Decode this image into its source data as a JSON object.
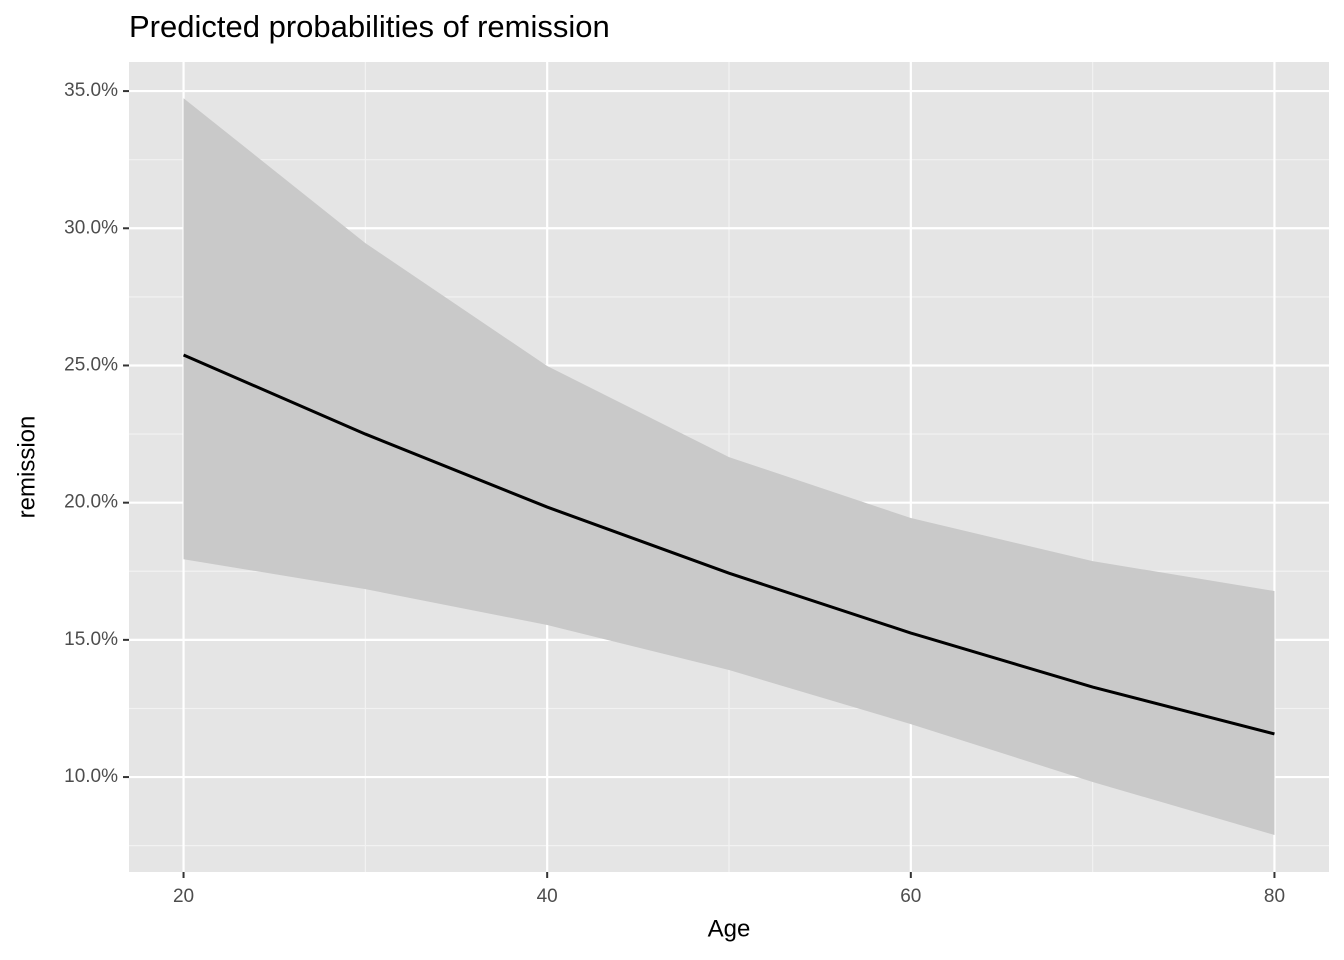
{
  "chart_data": {
    "type": "line",
    "title": "Predicted probabilities of remission",
    "x_label": "Age",
    "y_label": "remission",
    "x": [
      20,
      30,
      40,
      50,
      60,
      70,
      80
    ],
    "values": [
      25.38,
      22.5,
      19.84,
      17.43,
      15.25,
      13.28,
      11.57
    ],
    "upper": [
      34.74,
      29.46,
      24.98,
      21.66,
      19.44,
      17.87,
      16.78
    ],
    "lower": [
      17.94,
      16.85,
      15.54,
      13.9,
      11.93,
      9.82,
      7.89
    ],
    "color": "#000000",
    "ribbon_color": "#c9c9c9",
    "xlim": [
      17,
      83
    ],
    "xticks": [
      20,
      40,
      60,
      80
    ],
    "x_minor_ticks": [
      30,
      50,
      70
    ],
    "ylim": [
      6.54,
      36.06
    ],
    "yticks": [
      {
        "value": 10,
        "label": "10.0%"
      },
      {
        "value": 15,
        "label": "15.0%"
      },
      {
        "value": 20,
        "label": "20.0%"
      },
      {
        "value": 25,
        "label": "25.0%"
      },
      {
        "value": 30,
        "label": "30.0%"
      },
      {
        "value": 35,
        "label": "35.0%"
      }
    ],
    "y_minor_ticks": [
      7.5,
      12.5,
      17.5,
      22.5,
      27.5,
      32.5
    ],
    "grid": true
  }
}
